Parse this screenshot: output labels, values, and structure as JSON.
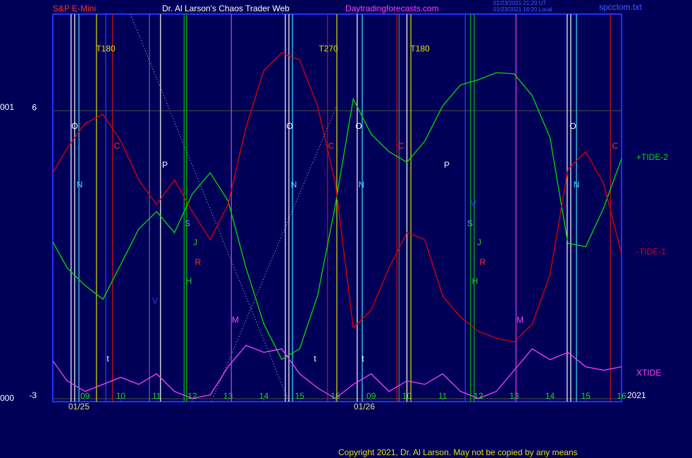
{
  "header": {
    "instrument": "S&P E-Mini",
    "site_title": "Dr. Al Larson's Chaos Trader Web",
    "url": "Daytradingforecasts.com",
    "stamp_utc": "01/23/2021 21:20 UT",
    "stamp_local": "01/23/2021 16:20 Local",
    "file": "spcctom.txt"
  },
  "side_labels": [
    "001",
    "000"
  ],
  "footer": {
    "copyright": "Copyright 2021, Dr. Al Larson. May not be copied by any means"
  },
  "chart_data": {
    "type": "line",
    "x": [
      8.1,
      8.5,
      9.0,
      9.5,
      10.0,
      10.5,
      11.0,
      11.5,
      12.0,
      12.5,
      13.0,
      13.5,
      14.0,
      14.5,
      15.0,
      15.5,
      16.0,
      16.5,
      17.0,
      17.5,
      18.0,
      18.5,
      19.0,
      19.5,
      20.0,
      20.5,
      21.0,
      21.5,
      22.0,
      22.5,
      23.0,
      23.5,
      24.0
    ],
    "series": [
      {
        "name": "+TIDE-2",
        "color": "#00e000",
        "values": [
          1.9,
          1.09,
          0.54,
          0.11,
          1.2,
          2.3,
          2.85,
          2.19,
          3.4,
          4.06,
          3.18,
          1.09,
          -0.67,
          -1.77,
          -1.44,
          0.21,
          3.07,
          6.37,
          5.27,
          4.72,
          4.39,
          5.05,
          6.15,
          6.81,
          6.97,
          7.19,
          7.15,
          6.48,
          5.16,
          1.86,
          1.75,
          2.96,
          4.5
        ]
      },
      {
        "name": "-TIDE-1",
        "color": "#e00000",
        "values": [
          4.06,
          4.83,
          5.6,
          5.89,
          5.05,
          3.84,
          3.07,
          3.84,
          2.85,
          1.97,
          3.07,
          5.49,
          7.26,
          7.81,
          7.59,
          6.15,
          3.73,
          -0.78,
          -0.23,
          1.09,
          2.19,
          1.97,
          0.21,
          -0.45,
          -0.89,
          -1.11,
          -1.22,
          -0.67,
          0.87,
          4.17,
          4.72,
          3.73,
          1.53
        ]
      },
      {
        "name": "XTIDE",
        "color": "#ff40ff",
        "values": [
          -1.82,
          -2.44,
          -2.77,
          -2.55,
          -2.33,
          -2.55,
          -2.22,
          -2.77,
          -2.99,
          -2.88,
          -2.0,
          -1.33,
          -1.55,
          -1.44,
          -2.22,
          -2.66,
          -2.99,
          -2.55,
          -2.22,
          -2.77,
          -2.44,
          -2.55,
          -2.22,
          -2.77,
          -2.99,
          -2.77,
          -2.11,
          -1.44,
          -1.78,
          -1.55,
          -2.0,
          -2.11,
          -2.0
        ]
      }
    ],
    "xlim": [
      8.1,
      24.0
    ],
    "xticks": [
      {
        "value": 9,
        "label": "09"
      },
      10,
      11,
      12,
      13,
      14,
      15,
      16,
      {
        "value": 17,
        "label": "09"
      },
      {
        "value": 18,
        "label": "10"
      },
      {
        "value": 19,
        "label": "11"
      },
      {
        "value": 20,
        "label": "12"
      },
      {
        "value": 21,
        "label": "13"
      },
      {
        "value": 22,
        "label": "14"
      },
      {
        "value": 23,
        "label": "15"
      },
      {
        "value": 24,
        "label": "16"
      }
    ],
    "ylim": [
      -3.09,
      9.02
    ],
    "yticks": [
      6,
      -3
    ],
    "grid": true,
    "dates": [
      "01/25",
      "01/26"
    ],
    "year_label": "2021",
    "event_lines": [
      {
        "x": 8.61,
        "color": "#ffffff"
      },
      {
        "x": 8.71,
        "color": "#ffffff"
      },
      {
        "x": 11.11,
        "color": "#ffffff"
      },
      {
        "x": 14.6,
        "color": "#ffffff"
      },
      {
        "x": 14.7,
        "color": "#ffffff"
      },
      {
        "x": 16.61,
        "color": "#ffffff"
      },
      {
        "x": 18.0,
        "color": "#ffffff"
      },
      {
        "x": 22.48,
        "color": "#ffffff"
      },
      {
        "x": 22.58,
        "color": "#ffffff"
      },
      {
        "x": 8.83,
        "color": "#40e0ff"
      },
      {
        "x": 14.8,
        "color": "#40e0ff"
      },
      {
        "x": 16.75,
        "color": "#40e0ff"
      },
      {
        "x": 22.74,
        "color": "#40e0ff"
      },
      {
        "x": 9.77,
        "color": "#d01010"
      },
      {
        "x": 15.78,
        "color": "#d01010"
      },
      {
        "x": 17.72,
        "color": "#d01010"
      },
      {
        "x": 23.69,
        "color": "#d01010"
      },
      {
        "x": 9.32,
        "color": "#e0e000"
      },
      {
        "x": 16.04,
        "color": "#e0e000"
      },
      {
        "x": 18.11,
        "color": "#e0e000"
      },
      {
        "x": 11.77,
        "color": "#00c000"
      },
      {
        "x": 11.84,
        "color": "#00c000"
      },
      {
        "x": 19.78,
        "color": "#00c000"
      },
      {
        "x": 19.88,
        "color": "#00c000"
      },
      {
        "x": 9.58,
        "color": "#3040ff"
      },
      {
        "x": 19.63,
        "color": "#3040ff"
      },
      {
        "x": 13.09,
        "color": "#e040e0"
      },
      {
        "x": 21.05,
        "color": "#e040e0"
      },
      {
        "x": 10.8,
        "color": "#707070"
      },
      {
        "x": 17.78,
        "color": "#707070"
      }
    ],
    "annotations": [
      "T180",
      "T270",
      "T180",
      "O",
      "O",
      "O",
      "O",
      "C",
      "C",
      "C",
      "C",
      "P",
      "P",
      "N",
      "N",
      "N",
      "N",
      "S",
      "S",
      "V",
      "V",
      "J",
      "J",
      "R",
      "R",
      "H",
      "H",
      "M",
      "M",
      "t",
      "t",
      "t"
    ]
  }
}
